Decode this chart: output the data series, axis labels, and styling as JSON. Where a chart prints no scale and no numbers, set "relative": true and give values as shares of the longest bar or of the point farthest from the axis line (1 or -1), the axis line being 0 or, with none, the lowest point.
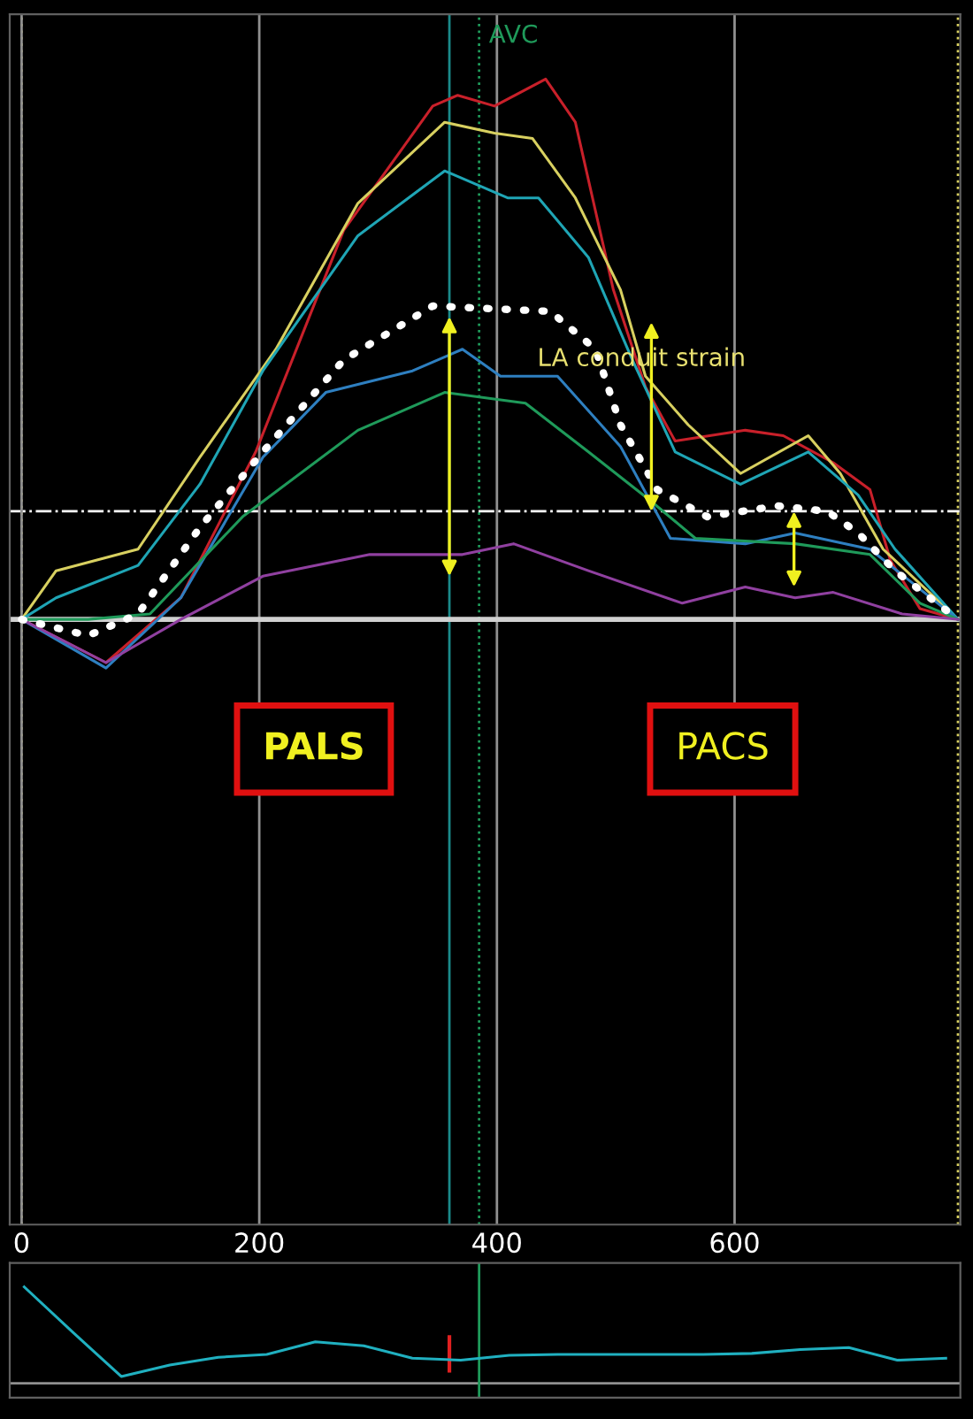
{
  "chart_data": [
    {
      "type": "line",
      "relative": true,
      "xlim": [
        -10,
        790
      ],
      "xticks": [
        0,
        200,
        400,
        600
      ],
      "grid": "x",
      "series": [
        {
          "color": "#c8202a",
          "x": [
            0,
            71,
            134,
            197,
            271,
            346,
            367,
            398,
            441,
            466,
            498,
            525,
            550,
            609,
            641,
            683,
            714,
            731,
            756,
            788
          ],
          "values": [
            0,
            -0.08,
            0.04,
            0.31,
            0.72,
            0.95,
            0.97,
            0.95,
            1.0,
            0.92,
            0.61,
            0.43,
            0.33,
            0.35,
            0.34,
            0.29,
            0.24,
            0.11,
            0.02,
            0
          ]
        },
        {
          "color": "#d8d060",
          "x": [
            0,
            29,
            98,
            150,
            214,
            283,
            356,
            398,
            430,
            466,
            504,
            525,
            561,
            605,
            662,
            689,
            725,
            788
          ],
          "values": [
            0,
            0.09,
            0.13,
            0.3,
            0.5,
            0.77,
            0.92,
            0.9,
            0.89,
            0.78,
            0.61,
            0.45,
            0.36,
            0.27,
            0.34,
            0.27,
            0.13,
            0
          ]
        },
        {
          "color": "#1fa5b5",
          "x": [
            0,
            29,
            98,
            150,
            203,
            283,
            356,
            409,
            435,
            477,
            514,
            550,
            605,
            662,
            704,
            735,
            788
          ],
          "values": [
            0,
            0.04,
            0.1,
            0.25,
            0.46,
            0.71,
            0.83,
            0.78,
            0.78,
            0.67,
            0.48,
            0.31,
            0.25,
            0.31,
            0.23,
            0.13,
            0
          ]
        },
        {
          "color": "#ffffff",
          "line_style": "dotted",
          "x": [
            0,
            56,
            98,
            150,
            203,
            271,
            346,
            445,
            483,
            504,
            535,
            577,
            636,
            678,
            704,
            735,
            788
          ],
          "values": [
            0,
            -0.03,
            0.01,
            0.17,
            0.31,
            0.48,
            0.58,
            0.57,
            0.5,
            0.36,
            0.24,
            0.19,
            0.21,
            0.2,
            0.16,
            0.09,
            0
          ]
        },
        {
          "color": "#2e7fc0",
          "x": [
            0,
            71,
            134,
            203,
            256,
            329,
            371,
            403,
            451,
            504,
            546,
            609,
            651,
            714,
            788
          ],
          "values": [
            0,
            -0.09,
            0.04,
            0.3,
            0.42,
            0.46,
            0.5,
            0.45,
            0.45,
            0.32,
            0.15,
            0.14,
            0.16,
            0.13,
            0
          ]
        },
        {
          "color": "#1f9a5a",
          "x": [
            0,
            56,
            108,
            186,
            283,
            356,
            424,
            477,
            529,
            567,
            651,
            714,
            756,
            788
          ],
          "values": [
            0,
            0,
            0.01,
            0.19,
            0.35,
            0.42,
            0.4,
            0.31,
            0.22,
            0.15,
            0.14,
            0.12,
            0.03,
            0
          ]
        },
        {
          "color": "#9040a0",
          "x": [
            0,
            71,
            134,
            203,
            293,
            371,
            414,
            477,
            556,
            609,
            651,
            683,
            741,
            788
          ],
          "values": [
            0,
            -0.08,
            0,
            0.08,
            0.12,
            0.12,
            0.14,
            0.09,
            0.03,
            0.06,
            0.04,
            0.05,
            0.01,
            0
          ]
        }
      ],
      "ref_lines": [
        {
          "axis": "x",
          "value": 360,
          "color": "#1a8a8a",
          "line_style": "solid"
        },
        {
          "axis": "x",
          "value": 385,
          "color": "#1f9a5a",
          "line_style": "dotted",
          "label": "AVC"
        },
        {
          "axis": "x",
          "value": 0,
          "color": "#d8d060",
          "line_style": "dotted"
        },
        {
          "axis": "x",
          "value": 788,
          "color": "#d8d060",
          "line_style": "dotted"
        },
        {
          "axis": "y",
          "value": 0.2,
          "color": "#ffffff",
          "line_style": "dashdot"
        }
      ],
      "annotations": [
        "LA conduit strain",
        "PALS",
        "PACS"
      ]
    },
    {
      "type": "line",
      "relative": true,
      "categories": [
        null,
        null,
        null,
        null,
        null,
        null,
        null,
        null,
        null,
        null,
        null,
        null,
        null,
        null,
        null,
        null,
        null,
        null,
        null,
        null
      ],
      "series": [
        {
          "color": "#20b0c0",
          "values": [
            1.0,
            0.53,
            0.07,
            0.19,
            0.27,
            0.3,
            0.43,
            0.39,
            0.26,
            0.24,
            0.29,
            0.3,
            0.3,
            0.3,
            0.3,
            0.31,
            0.35,
            0.37,
            0.24,
            0.26
          ]
        }
      ]
    }
  ]
}
